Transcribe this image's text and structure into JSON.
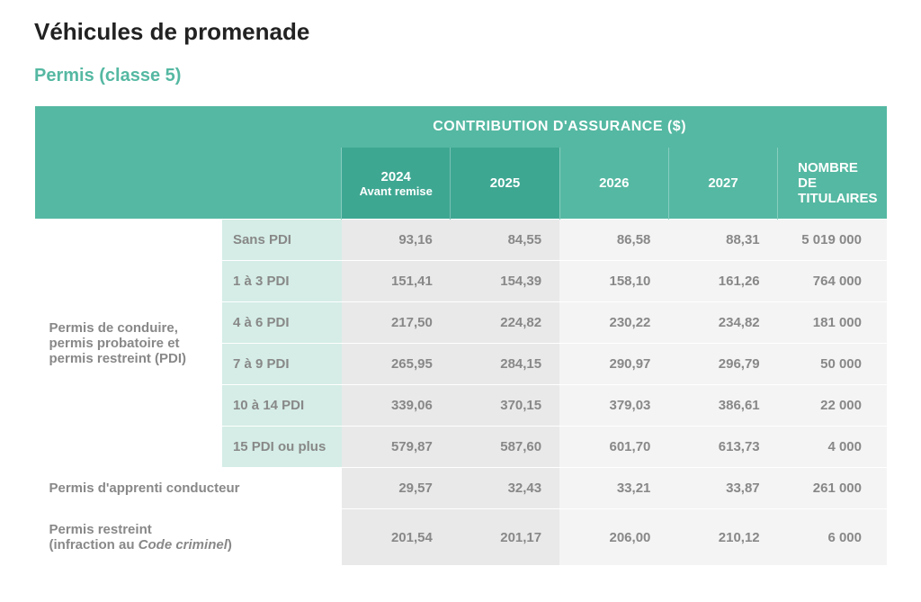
{
  "colors": {
    "teal": "#55b8a2",
    "teal_dark": "#3ea792",
    "teal_light": "#d5ede6",
    "accent_text": "#55b8a2"
  },
  "title": "Véhicules de promenade",
  "subtitle": "Permis (classe 5)",
  "header": {
    "group_label": "CONTRIBUTION D'ASSURANCE ($)",
    "y2024": "2024",
    "y2024_sub": "Avant remise",
    "y2025": "2025",
    "y2026": "2026",
    "y2027": "2027",
    "titulaires_line1": "NOMBRE DE",
    "titulaires_line2": "TITULAIRES"
  },
  "group1": {
    "label": "Permis de conduire, permis probatoire et permis restreint (PDI)",
    "rows": [
      {
        "sub": "Sans PDI",
        "y2024": "93,16",
        "y2025": "84,55",
        "y2026": "86,58",
        "y2027": "88,31",
        "tit": "5 019 000"
      },
      {
        "sub": "1 à 3 PDI",
        "y2024": "151,41",
        "y2025": "154,39",
        "y2026": "158,10",
        "y2027": "161,26",
        "tit": "764 000"
      },
      {
        "sub": "4 à 6 PDI",
        "y2024": "217,50",
        "y2025": "224,82",
        "y2026": "230,22",
        "y2027": "234,82",
        "tit": "181 000"
      },
      {
        "sub": "7 à 9 PDI",
        "y2024": "265,95",
        "y2025": "284,15",
        "y2026": "290,97",
        "y2027": "296,79",
        "tit": "50 000"
      },
      {
        "sub": "10 à 14 PDI",
        "y2024": "339,06",
        "y2025": "370,15",
        "y2026": "379,03",
        "y2027": "386,61",
        "tit": "22 000"
      },
      {
        "sub": "15 PDI ou plus",
        "y2024": "579,87",
        "y2025": "587,60",
        "y2026": "601,70",
        "y2027": "613,73",
        "tit": "4 000"
      }
    ]
  },
  "row_apprenti": {
    "label": "Permis d'apprenti conducteur",
    "y2024": "29,57",
    "y2025": "32,43",
    "y2026": "33,21",
    "y2027": "33,87",
    "tit": "261 000"
  },
  "row_restreint": {
    "label_line1": "Permis restreint",
    "label_line2a": "(infraction au ",
    "label_line2b": "Code criminel",
    "label_line2c": ")",
    "y2024": "201,54",
    "y2025": "201,17",
    "y2026": "206,00",
    "y2027": "210,12",
    "tit": "6 000"
  }
}
